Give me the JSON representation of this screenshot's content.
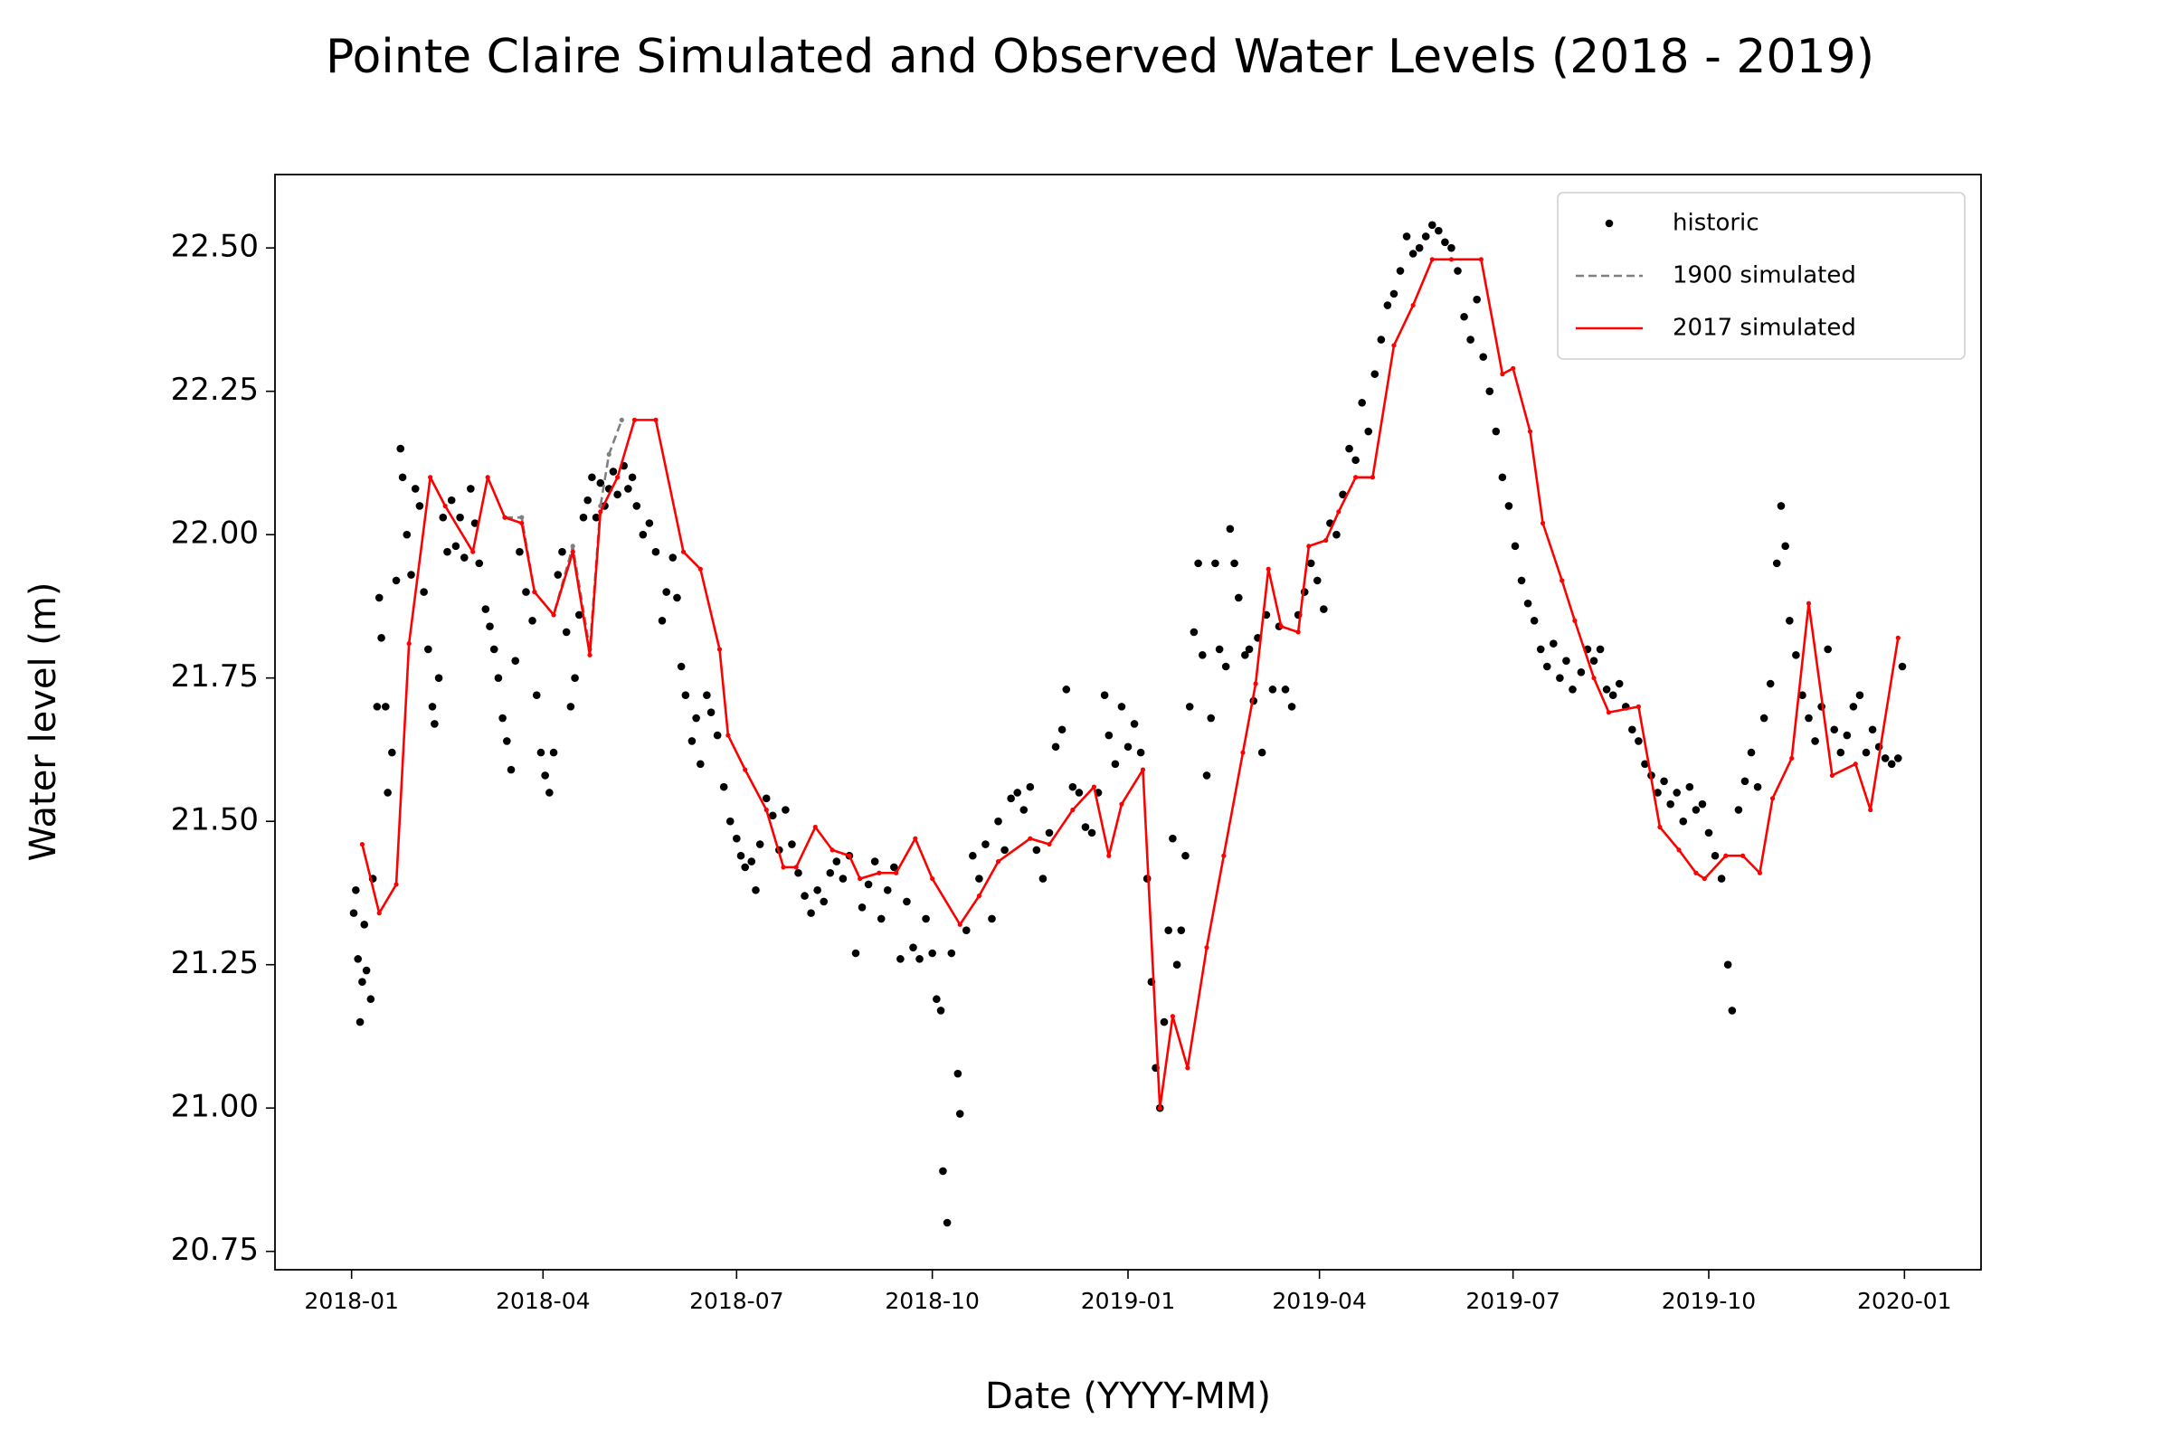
{
  "chart_data": {
    "type": "line",
    "title": "Pointe Claire Simulated and Observed Water Levels (2018 - 2019)",
    "x_label": "Date (YYYY-MM)",
    "y_label": "Water level (m)",
    "xlim": [
      "2017-11-26",
      "2020-02-06"
    ],
    "xticks": [
      "2018-01",
      "2018-04",
      "2018-07",
      "2018-10",
      "2019-01",
      "2019-04",
      "2019-07",
      "2019-10",
      "2020-01"
    ],
    "ylim": [
      20.718,
      22.628
    ],
    "yticks": [
      {
        "value": 20.75,
        "label": "20.75"
      },
      {
        "value": 21.0,
        "label": "21.00"
      },
      {
        "value": 21.25,
        "label": "21.25"
      },
      {
        "value": 21.5,
        "label": "21.50"
      },
      {
        "value": 21.75,
        "label": "21.75"
      },
      {
        "value": 22.0,
        "label": "22.00"
      },
      {
        "value": 22.25,
        "label": "22.25"
      },
      {
        "value": 22.5,
        "label": "22.50"
      }
    ],
    "legend": "upper right",
    "series": [
      {
        "name": "historic",
        "type": "scatter",
        "color": "#000000",
        "x": [
          "2018-01-02",
          "2018-01-03",
          "2018-01-04",
          "2018-01-05",
          "2018-01-06",
          "2018-01-07",
          "2018-01-08",
          "2018-01-10",
          "2018-01-11",
          "2018-01-13",
          "2018-01-14",
          "2018-01-15",
          "2018-01-17",
          "2018-01-18",
          "2018-01-20",
          "2018-01-22",
          "2018-01-24",
          "2018-01-25",
          "2018-01-27",
          "2018-01-29",
          "2018-01-31",
          "2018-02-02",
          "2018-02-04",
          "2018-02-06",
          "2018-02-08",
          "2018-02-09",
          "2018-02-11",
          "2018-02-13",
          "2018-02-15",
          "2018-02-17",
          "2018-02-19",
          "2018-02-21",
          "2018-02-23",
          "2018-02-26",
          "2018-02-28",
          "2018-03-02",
          "2018-03-05",
          "2018-03-07",
          "2018-03-09",
          "2018-03-11",
          "2018-03-13",
          "2018-03-15",
          "2018-03-17",
          "2018-03-19",
          "2018-03-21",
          "2018-03-24",
          "2018-03-27",
          "2018-03-29",
          "2018-03-31",
          "2018-04-02",
          "2018-04-04",
          "2018-04-06",
          "2018-04-08",
          "2018-04-10",
          "2018-04-12",
          "2018-04-14",
          "2018-04-16",
          "2018-04-18",
          "2018-04-20",
          "2018-04-22",
          "2018-04-24",
          "2018-04-26",
          "2018-04-28",
          "2018-04-30",
          "2018-05-02",
          "2018-05-04",
          "2018-05-06",
          "2018-05-09",
          "2018-05-11",
          "2018-05-13",
          "2018-05-15",
          "2018-05-18",
          "2018-05-21",
          "2018-05-24",
          "2018-05-27",
          "2018-05-29",
          "2018-06-01",
          "2018-06-03",
          "2018-06-05",
          "2018-06-07",
          "2018-06-10",
          "2018-06-12",
          "2018-06-14",
          "2018-06-17",
          "2018-06-19",
          "2018-06-22",
          "2018-06-25",
          "2018-06-28",
          "2018-07-01",
          "2018-07-03",
          "2018-07-05",
          "2018-07-08",
          "2018-07-10",
          "2018-07-12",
          "2018-07-15",
          "2018-07-18",
          "2018-07-21",
          "2018-07-24",
          "2018-07-27",
          "2018-07-30",
          "2018-08-02",
          "2018-08-05",
          "2018-08-08",
          "2018-08-11",
          "2018-08-14",
          "2018-08-17",
          "2018-08-20",
          "2018-08-23",
          "2018-08-26",
          "2018-08-29",
          "2018-09-01",
          "2018-09-04",
          "2018-09-07",
          "2018-09-10",
          "2018-09-13",
          "2018-09-16",
          "2018-09-19",
          "2018-09-22",
          "2018-09-25",
          "2018-09-28",
          "2018-10-01",
          "2018-10-03",
          "2018-10-05",
          "2018-10-06",
          "2018-10-08",
          "2018-10-10",
          "2018-10-13",
          "2018-10-14",
          "2018-10-17",
          "2018-10-20",
          "2018-10-23",
          "2018-10-26",
          "2018-10-29",
          "2018-11-01",
          "2018-11-04",
          "2018-11-07",
          "2018-11-10",
          "2018-11-13",
          "2018-11-16",
          "2018-11-19",
          "2018-11-22",
          "2018-11-25",
          "2018-11-28",
          "2018-12-01",
          "2018-12-03",
          "2018-12-06",
          "2018-12-09",
          "2018-12-12",
          "2018-12-15",
          "2018-12-18",
          "2018-12-21",
          "2018-12-23",
          "2018-12-26",
          "2018-12-29",
          "2019-01-01",
          "2019-01-04",
          "2019-01-07",
          "2019-01-10",
          "2019-01-12",
          "2019-01-14",
          "2019-01-16",
          "2019-01-18",
          "2019-01-20",
          "2019-01-22",
          "2019-01-24",
          "2019-01-26",
          "2019-01-28",
          "2019-01-30",
          "2019-02-01",
          "2019-02-03",
          "2019-02-05",
          "2019-02-07",
          "2019-02-09",
          "2019-02-11",
          "2019-02-13",
          "2019-02-16",
          "2019-02-18",
          "2019-02-20",
          "2019-02-22",
          "2019-02-25",
          "2019-02-27",
          "2019-03-01",
          "2019-03-03",
          "2019-03-05",
          "2019-03-07",
          "2019-03-10",
          "2019-03-13",
          "2019-03-16",
          "2019-03-19",
          "2019-03-22",
          "2019-03-25",
          "2019-03-28",
          "2019-03-31",
          "2019-04-03",
          "2019-04-06",
          "2019-04-09",
          "2019-04-12",
          "2019-04-15",
          "2019-04-18",
          "2019-04-21",
          "2019-04-24",
          "2019-04-27",
          "2019-04-30",
          "2019-05-03",
          "2019-05-06",
          "2019-05-09",
          "2019-05-12",
          "2019-05-15",
          "2019-05-18",
          "2019-05-21",
          "2019-05-24",
          "2019-05-27",
          "2019-05-30",
          "2019-06-02",
          "2019-06-05",
          "2019-06-08",
          "2019-06-11",
          "2019-06-14",
          "2019-06-17",
          "2019-06-20",
          "2019-06-23",
          "2019-06-26",
          "2019-06-29",
          "2019-07-02",
          "2019-07-05",
          "2019-07-08",
          "2019-07-11",
          "2019-07-14",
          "2019-07-17",
          "2019-07-20",
          "2019-07-23",
          "2019-07-26",
          "2019-07-29",
          "2019-08-02",
          "2019-08-05",
          "2019-08-08",
          "2019-08-11",
          "2019-08-14",
          "2019-08-17",
          "2019-08-20",
          "2019-08-23",
          "2019-08-26",
          "2019-08-29",
          "2019-09-01",
          "2019-09-04",
          "2019-09-07",
          "2019-09-10",
          "2019-09-13",
          "2019-09-16",
          "2019-09-19",
          "2019-09-22",
          "2019-09-25",
          "2019-09-28",
          "2019-10-01",
          "2019-10-04",
          "2019-10-07",
          "2019-10-10",
          "2019-10-12",
          "2019-10-15",
          "2019-10-18",
          "2019-10-21",
          "2019-10-24",
          "2019-10-27",
          "2019-10-30",
          "2019-11-02",
          "2019-11-04",
          "2019-11-06",
          "2019-11-08",
          "2019-11-11",
          "2019-11-14",
          "2019-11-17",
          "2019-11-20",
          "2019-11-23",
          "2019-11-26",
          "2019-11-29",
          "2019-12-02",
          "2019-12-05",
          "2019-12-08",
          "2019-12-11",
          "2019-12-14",
          "2019-12-17",
          "2019-12-20",
          "2019-12-23",
          "2019-12-26",
          "2019-12-29",
          "2019-12-31"
        ],
        "values": [
          21.34,
          21.38,
          21.26,
          21.15,
          21.22,
          21.32,
          21.24,
          21.19,
          21.4,
          21.7,
          21.89,
          21.82,
          21.7,
          21.55,
          21.62,
          21.92,
          22.15,
          22.1,
          22.0,
          21.93,
          22.08,
          22.05,
          21.9,
          21.8,
          21.7,
          21.67,
          21.75,
          22.03,
          21.97,
          22.06,
          21.98,
          22.03,
          21.96,
          22.08,
          22.02,
          21.95,
          21.87,
          21.84,
          21.8,
          21.75,
          21.68,
          21.64,
          21.59,
          21.78,
          21.97,
          21.9,
          21.85,
          21.72,
          21.62,
          21.58,
          21.55,
          21.62,
          21.93,
          21.97,
          21.83,
          21.7,
          21.75,
          21.86,
          22.03,
          22.06,
          22.1,
          22.03,
          22.09,
          22.05,
          22.08,
          22.11,
          22.07,
          22.12,
          22.08,
          22.1,
          22.05,
          22.0,
          22.02,
          21.97,
          21.85,
          21.9,
          21.96,
          21.89,
          21.77,
          21.72,
          21.64,
          21.68,
          21.6,
          21.72,
          21.69,
          21.65,
          21.56,
          21.5,
          21.47,
          21.44,
          21.42,
          21.43,
          21.38,
          21.46,
          21.54,
          21.51,
          21.45,
          21.52,
          21.46,
          21.41,
          21.37,
          21.34,
          21.38,
          21.36,
          21.41,
          21.43,
          21.4,
          21.44,
          21.27,
          21.35,
          21.39,
          21.43,
          21.33,
          21.38,
          21.42,
          21.26,
          21.36,
          21.28,
          21.26,
          21.33,
          21.27,
          21.19,
          21.17,
          20.89,
          20.8,
          21.27,
          21.06,
          20.99,
          21.31,
          21.44,
          21.4,
          21.46,
          21.33,
          21.5,
          21.45,
          21.54,
          21.55,
          21.52,
          21.56,
          21.45,
          21.4,
          21.48,
          21.63,
          21.66,
          21.73,
          21.56,
          21.55,
          21.49,
          21.48,
          21.55,
          21.72,
          21.65,
          21.6,
          21.7,
          21.63,
          21.67,
          21.62,
          21.4,
          21.22,
          21.07,
          21.0,
          21.15,
          21.31,
          21.47,
          21.25,
          21.31,
          21.44,
          21.7,
          21.83,
          21.95,
          21.79,
          21.58,
          21.68,
          21.95,
          21.8,
          21.77,
          22.01,
          21.95,
          21.89,
          21.79,
          21.8,
          21.71,
          21.82,
          21.62,
          21.86,
          21.73,
          21.84,
          21.73,
          21.7,
          21.86,
          21.9,
          21.95,
          21.92,
          21.87,
          22.02,
          22.0,
          22.07,
          22.15,
          22.13,
          22.23,
          22.18,
          22.28,
          22.34,
          22.4,
          22.42,
          22.46,
          22.52,
          22.49,
          22.5,
          22.52,
          22.54,
          22.53,
          22.51,
          22.5,
          22.46,
          22.38,
          22.34,
          22.41,
          22.31,
          22.25,
          22.18,
          22.1,
          22.05,
          21.98,
          21.92,
          21.88,
          21.85,
          21.8,
          21.77,
          21.81,
          21.75,
          21.78,
          21.73,
          21.76,
          21.8,
          21.78,
          21.8,
          21.73,
          21.72,
          21.74,
          21.7,
          21.66,
          21.64,
          21.6,
          21.58,
          21.55,
          21.57,
          21.53,
          21.55,
          21.5,
          21.56,
          21.52,
          21.53,
          21.48,
          21.44,
          21.4,
          21.25,
          21.17,
          21.52,
          21.57,
          21.62,
          21.56,
          21.68,
          21.74,
          21.95,
          22.05,
          21.98,
          21.85,
          21.79,
          21.72,
          21.68,
          21.64,
          21.7,
          21.8,
          21.66,
          21.62,
          21.65,
          21.7,
          21.72,
          21.62,
          21.66,
          21.63,
          21.61,
          21.6,
          21.61,
          21.77
        ]
      },
      {
        "name": "1900 simulated",
        "type": "line",
        "color": "#808080",
        "linestyle": "dashed",
        "markers": true,
        "x": [
          "2018-03-14",
          "2018-03-22",
          "2018-03-28",
          "2018-04-06",
          "2018-04-15",
          "2018-04-23",
          "2018-04-28",
          "2018-05-02",
          "2018-05-08"
        ],
        "values": [
          22.03,
          22.03,
          21.9,
          21.86,
          21.98,
          21.8,
          22.05,
          22.14,
          22.2
        ]
      },
      {
        "name": "2017 simulated",
        "type": "line",
        "color": "#ff0000",
        "linestyle": "solid",
        "markers": true,
        "x": [
          "2018-01-06",
          "2018-01-14",
          "2018-01-22",
          "2018-01-28",
          "2018-02-07",
          "2018-02-14",
          "2018-02-27",
          "2018-03-06",
          "2018-03-14",
          "2018-03-22",
          "2018-03-28",
          "2018-04-06",
          "2018-04-15",
          "2018-04-23",
          "2018-04-28",
          "2018-05-06",
          "2018-05-14",
          "2018-05-24",
          "2018-06-06",
          "2018-06-14",
          "2018-06-23",
          "2018-06-27",
          "2018-07-05",
          "2018-07-15",
          "2018-07-23",
          "2018-07-29",
          "2018-08-07",
          "2018-08-15",
          "2018-08-23",
          "2018-08-28",
          "2018-09-06",
          "2018-09-14",
          "2018-09-23",
          "2018-10-01",
          "2018-10-14",
          "2018-10-23",
          "2018-11-01",
          "2018-11-16",
          "2018-11-25",
          "2018-12-06",
          "2018-12-16",
          "2018-12-23",
          "2018-12-29",
          "2019-01-08",
          "2019-01-16",
          "2019-01-22",
          "2019-01-29",
          "2019-02-07",
          "2019-02-15",
          "2019-02-24",
          "2019-03-02",
          "2019-03-08",
          "2019-03-14",
          "2019-03-22",
          "2019-03-27",
          "2019-04-04",
          "2019-04-10",
          "2019-04-18",
          "2019-04-26",
          "2019-05-06",
          "2019-05-15",
          "2019-05-24",
          "2019-06-02",
          "2019-06-16",
          "2019-06-26",
          "2019-07-01",
          "2019-07-09",
          "2019-07-15",
          "2019-07-24",
          "2019-07-30",
          "2019-08-08",
          "2019-08-15",
          "2019-08-29",
          "2019-09-08",
          "2019-09-17",
          "2019-09-25",
          "2019-09-29",
          "2019-10-09",
          "2019-10-17",
          "2019-10-25",
          "2019-10-31",
          "2019-11-09",
          "2019-11-17",
          "2019-11-28",
          "2019-12-09",
          "2019-12-16",
          "2019-12-29"
        ],
        "values": [
          21.46,
          21.34,
          21.39,
          21.81,
          22.1,
          22.05,
          21.97,
          22.1,
          22.03,
          22.02,
          21.9,
          21.86,
          21.97,
          21.79,
          22.04,
          22.1,
          22.2,
          22.2,
          21.97,
          21.94,
          21.8,
          21.65,
          21.59,
          21.52,
          21.42,
          21.42,
          21.49,
          21.45,
          21.44,
          21.4,
          21.41,
          21.41,
          21.47,
          21.4,
          21.32,
          21.37,
          21.43,
          21.47,
          21.46,
          21.52,
          21.56,
          21.44,
          21.53,
          21.59,
          21.0,
          21.16,
          21.07,
          21.28,
          21.44,
          21.62,
          21.74,
          21.94,
          21.84,
          21.83,
          21.98,
          21.99,
          22.04,
          22.1,
          22.1,
          22.33,
          22.4,
          22.48,
          22.48,
          22.48,
          22.28,
          22.29,
          22.18,
          22.02,
          21.92,
          21.85,
          21.75,
          21.69,
          21.7,
          21.49,
          21.45,
          21.41,
          21.4,
          21.44,
          21.44,
          21.41,
          21.54,
          21.61,
          21.88,
          21.58,
          21.6,
          21.52,
          21.82
        ]
      }
    ]
  }
}
